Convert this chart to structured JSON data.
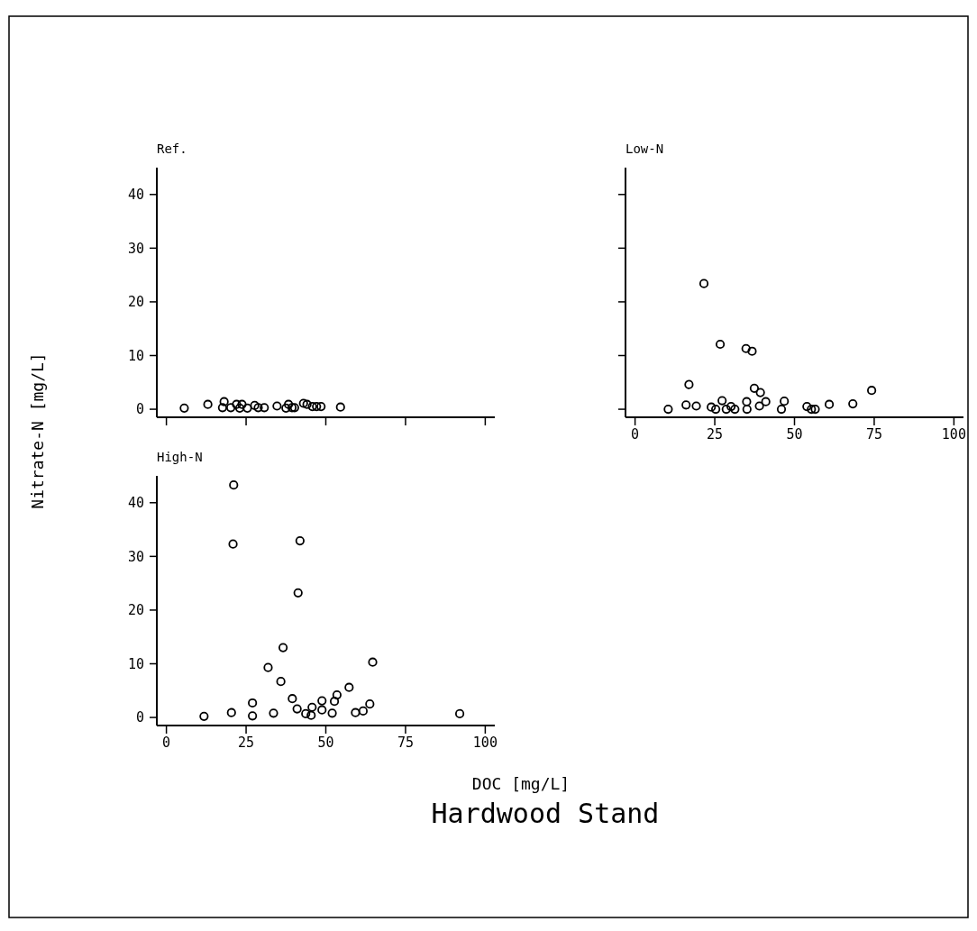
{
  "chart_data": [
    {
      "type": "scatter",
      "title": "Ref.",
      "marker": "circle",
      "color": "#000000",
      "xlim": [
        -3,
        103
      ],
      "ylim": [
        -1.5,
        45
      ],
      "xticks": [
        0,
        25,
        50,
        75,
        100
      ],
      "yticks": [
        0,
        10,
        20,
        30,
        40
      ],
      "tick_labels": "y",
      "x": [
        5.6,
        13,
        18.1,
        17.6,
        20.2,
        22,
        23.7,
        23,
        25.4,
        27.7,
        28.8,
        30.7,
        34.7,
        37.5,
        38.3,
        39.4,
        40.2,
        43,
        44.1,
        45.8,
        47.1,
        48.5,
        54.6
      ],
      "values": [
        0.2,
        0.9,
        1.4,
        0.3,
        0.3,
        0.9,
        0.9,
        0.2,
        0.2,
        0.7,
        0.3,
        0.3,
        0.6,
        0.2,
        0.9,
        0.3,
        0.3,
        1.1,
        0.9,
        0.5,
        0.5,
        0.5,
        0.4
      ]
    },
    {
      "type": "scatter",
      "title": "Low-N",
      "marker": "circle",
      "color": "#000000",
      "xlim": [
        -3,
        103
      ],
      "ylim": [
        -1.5,
        45
      ],
      "xticks": [
        0,
        25,
        50,
        75,
        100
      ],
      "yticks": [
        {
          "value": 0,
          "label": null
        },
        {
          "value": 10,
          "label": null
        },
        {
          "value": 20,
          "label": null
        },
        {
          "value": 30,
          "label": null
        },
        {
          "value": 40,
          "label": null
        }
      ],
      "tick_labels": "x",
      "x": [
        10.4,
        16.0,
        16.9,
        19.2,
        21.6,
        23.9,
        25.3,
        26.7,
        27.3,
        28.6,
        30.1,
        31.3,
        34.8,
        35,
        35.1,
        36.7,
        37.4,
        39,
        39.3,
        41,
        45.9,
        46.8,
        53.9,
        55.3,
        56.5,
        60.9,
        68.3,
        74.2
      ],
      "values": [
        0,
        0.8,
        4.6,
        0.6,
        23.4,
        0.4,
        0,
        12.1,
        1.6,
        0,
        0.5,
        0,
        11.3,
        1.4,
        0,
        10.8,
        3.9,
        0.6,
        3.1,
        1.4,
        0,
        1.5,
        0.5,
        0,
        0,
        0.9,
        1.0,
        3.5
      ]
    },
    {
      "type": "scatter",
      "title": "High-N",
      "xlabel": "DOC [mg/L]",
      "ylabel": "Nitrate-N [mg/L]",
      "annotations": [
        "Hardwood Stand"
      ],
      "marker": "circle",
      "color": "#000000",
      "xlim": [
        -3,
        103
      ],
      "ylim": [
        -1.5,
        45
      ],
      "xticks": [
        0,
        25,
        50,
        75,
        100
      ],
      "yticks": [
        0,
        10,
        20,
        30,
        40
      ],
      "x": [
        11.8,
        20.4,
        21.1,
        20.9,
        27,
        27,
        33.6,
        31.9,
        36.6,
        35.9,
        39.5,
        41,
        41.9,
        41.3,
        43.7,
        45.4,
        45.7,
        48.8,
        48.8,
        52,
        52.7,
        53.5,
        57.3,
        59.3,
        61.7,
        63.8,
        64.7,
        92
      ],
      "values": [
        0.2,
        0.9,
        43.3,
        32.3,
        2.7,
        0.3,
        0.8,
        9.3,
        13.0,
        6.7,
        3.5,
        1.6,
        32.9,
        23.2,
        0.7,
        0.4,
        1.9,
        1.4,
        3.1,
        0.8,
        3.0,
        4.2,
        5.6,
        0.9,
        1.2,
        2.5,
        10.3,
        0.7
      ]
    }
  ]
}
